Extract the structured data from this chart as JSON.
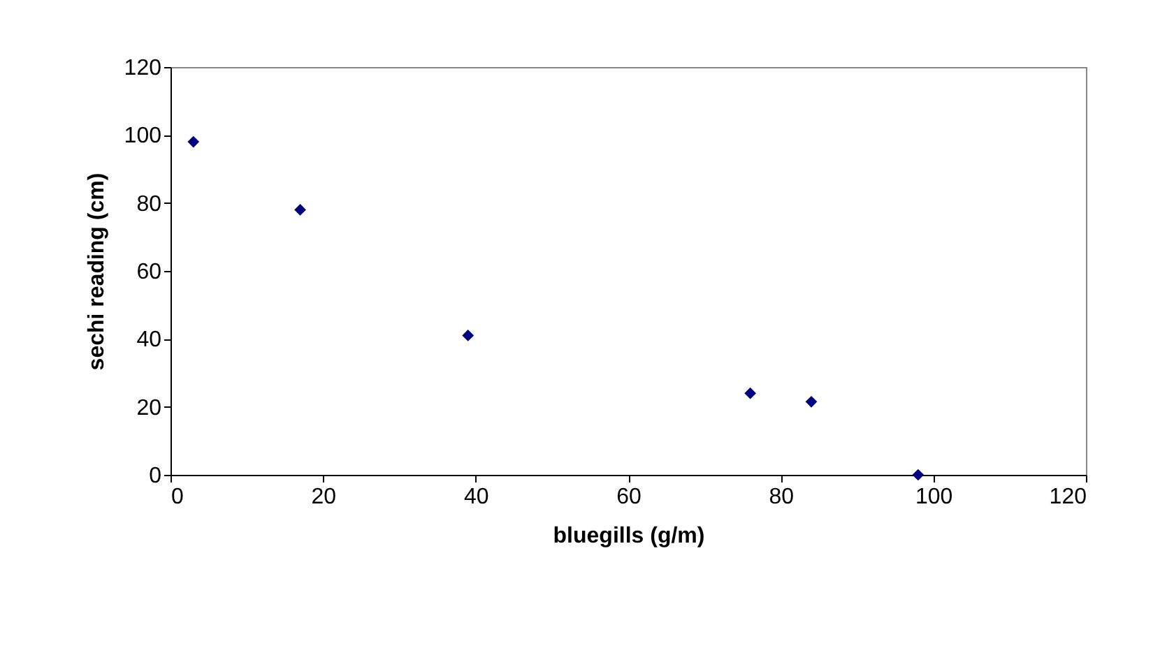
{
  "chart_data": {
    "type": "scatter",
    "xlabel": "bluegills (g/m)",
    "ylabel": "sechi reading (cm)",
    "x": [
      3,
      17,
      39,
      76,
      84,
      98
    ],
    "series": [
      {
        "color": "#000080",
        "values": [
          98,
          78,
          41,
          24,
          21.5,
          0
        ]
      }
    ],
    "xlim": [
      0,
      120
    ],
    "xticks": [
      0,
      20,
      40,
      60,
      80,
      100,
      120
    ],
    "ylim": [
      0,
      120
    ],
    "yticks": [
      0,
      20,
      40,
      60,
      80,
      100,
      120
    ],
    "marker": "diamond",
    "grid": false
  }
}
